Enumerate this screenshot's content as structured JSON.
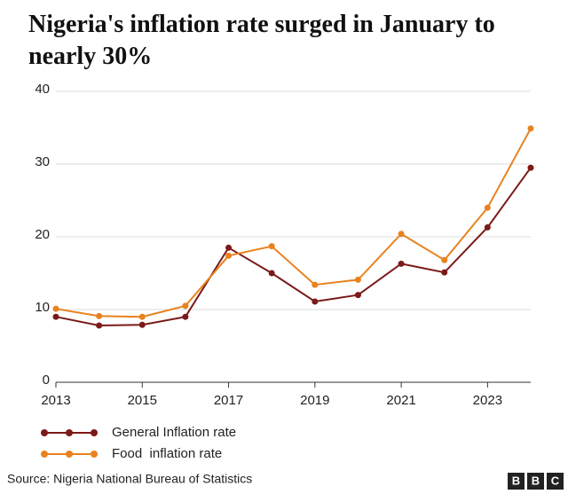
{
  "chart_data": {
    "type": "line",
    "title": "Nigeria's inflation rate surged in January to nearly 30%",
    "x": [
      2013,
      2014,
      2015,
      2016,
      2017,
      2018,
      2019,
      2020,
      2021,
      2022,
      2023,
      2024
    ],
    "series": [
      {
        "name": "General Inflation rate",
        "color": "#7b1a1a",
        "values": [
          9.0,
          7.8,
          7.9,
          9.0,
          18.5,
          15.0,
          11.1,
          12.0,
          16.3,
          15.1,
          21.3,
          29.5
        ]
      },
      {
        "name": "Food  inflation rate",
        "color": "#e8821e",
        "values": [
          10.1,
          9.1,
          9.0,
          10.5,
          17.4,
          18.7,
          13.4,
          14.1,
          20.4,
          16.8,
          24.0,
          34.9
        ]
      }
    ],
    "xlim": [
      2013,
      2024
    ],
    "xticks": [
      2013,
      2015,
      2017,
      2019,
      2021,
      2023
    ],
    "ylim": [
      0,
      40
    ],
    "yticks": [
      0,
      10,
      20,
      30,
      40
    ],
    "grid": true,
    "source": "Source: Nigeria National Bureau of Statistics",
    "logo": [
      "B",
      "B",
      "C"
    ]
  }
}
